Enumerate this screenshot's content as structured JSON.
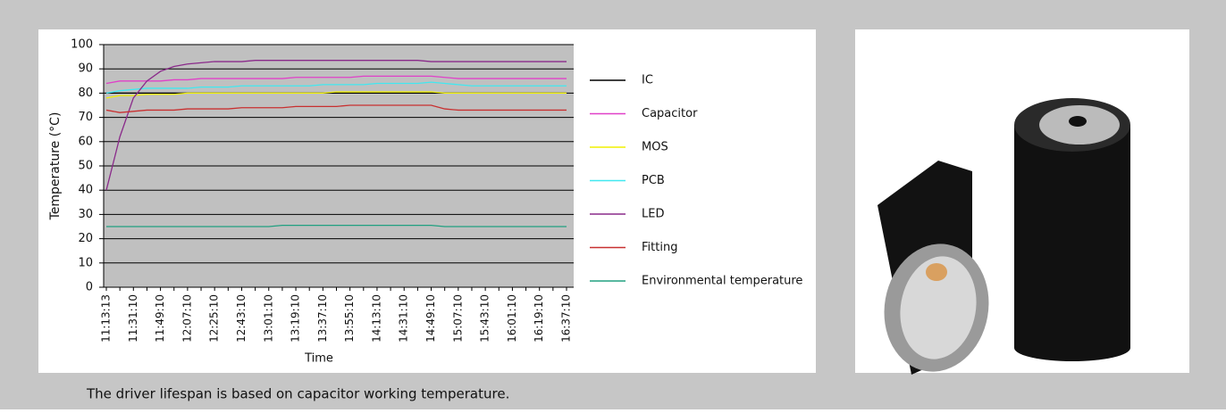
{
  "chart_data": {
    "type": "line",
    "ylabel": "Temperature (°C)",
    "xlabel": "Time",
    "categories": [
      "11:13:13",
      null,
      "11:31:10",
      null,
      "11:49:10",
      null,
      "12:07:10",
      null,
      "12:25:10",
      null,
      "12:43:10",
      null,
      "13:01:10",
      null,
      "13:19:10",
      null,
      "13:37:10",
      null,
      "13:55:10",
      null,
      "14:13:10",
      null,
      "14:31:10",
      null,
      "14:49:10",
      null,
      "15:07:10",
      null,
      "15:43:10",
      null,
      "16:01:10",
      null,
      "16:19:10",
      null,
      "16:37:10"
    ],
    "series": [
      {
        "name": "IC",
        "color": "#000000",
        "values": [
          80,
          80,
          80,
          80,
          80,
          80,
          80,
          80,
          80,
          80,
          80,
          80,
          80,
          80,
          80,
          80,
          80,
          80,
          80,
          80,
          80,
          80,
          80,
          80,
          80,
          80,
          80,
          80,
          80,
          80,
          80,
          80,
          80,
          80,
          80
        ]
      },
      {
        "name": "Capacitor",
        "color": "#e040c8",
        "values": [
          84,
          85,
          85,
          85,
          85,
          85.5,
          85.5,
          86,
          86,
          86,
          86,
          86,
          86,
          86,
          86.5,
          86.5,
          86.5,
          86.5,
          86.5,
          87,
          87,
          87,
          87,
          87,
          87,
          86.5,
          86,
          86,
          86,
          86,
          86,
          86,
          86,
          86,
          86
        ]
      },
      {
        "name": "MOS",
        "color": "#f0f000",
        "values": [
          78,
          79,
          79,
          79.5,
          79.5,
          79.5,
          80,
          80,
          80,
          80,
          80,
          80,
          80,
          80,
          80,
          80,
          80,
          80.5,
          80.5,
          80.5,
          80.5,
          80.5,
          80.5,
          80.5,
          80.5,
          80,
          80,
          80,
          80,
          80,
          80,
          80,
          80,
          80,
          80
        ]
      },
      {
        "name": "PCB",
        "color": "#40e8f0",
        "values": [
          80,
          81,
          81.5,
          82,
          82,
          82,
          82,
          82.5,
          82.5,
          82.5,
          83,
          83,
          83,
          83,
          83,
          83,
          83.5,
          83.5,
          83.5,
          83.5,
          84,
          84,
          84,
          84,
          84.5,
          84,
          83.5,
          83,
          83,
          83,
          83,
          83,
          83,
          83,
          83
        ]
      },
      {
        "name": "LED",
        "color": "#8a2a8a",
        "values": [
          40,
          62,
          78,
          85,
          89,
          91,
          92,
          92.5,
          93,
          93,
          93,
          93.5,
          93.5,
          93.5,
          93.5,
          93.5,
          93.5,
          93.5,
          93.5,
          93.5,
          93.5,
          93.5,
          93.5,
          93.5,
          93,
          93,
          93,
          93,
          93,
          93,
          93,
          93,
          93,
          93,
          93
        ]
      },
      {
        "name": "Fitting",
        "color": "#c83030",
        "values": [
          73,
          72,
          72.5,
          73,
          73,
          73,
          73.5,
          73.5,
          73.5,
          73.5,
          74,
          74,
          74,
          74,
          74.5,
          74.5,
          74.5,
          74.5,
          75,
          75,
          75,
          75,
          75,
          75,
          75,
          73.5,
          73,
          73,
          73,
          73,
          73,
          73,
          73,
          73,
          73
        ]
      },
      {
        "name": "Environmental temperature",
        "color": "#20a080",
        "values": [
          25,
          25,
          25,
          25,
          25,
          25,
          25,
          25,
          25,
          25,
          25,
          25,
          25,
          25.5,
          25.5,
          25.5,
          25.5,
          25.5,
          25.5,
          25.5,
          25.5,
          25.5,
          25.5,
          25.5,
          25.5,
          25,
          25,
          25,
          25,
          25,
          25,
          25,
          25,
          25,
          25
        ]
      }
    ],
    "ylim": [
      0,
      100
    ],
    "yticks": [
      0,
      10,
      20,
      30,
      40,
      50,
      60,
      70,
      80,
      90,
      100
    ],
    "grid": true
  },
  "caption": "The driver lifespan is based on capacitor working temperature."
}
